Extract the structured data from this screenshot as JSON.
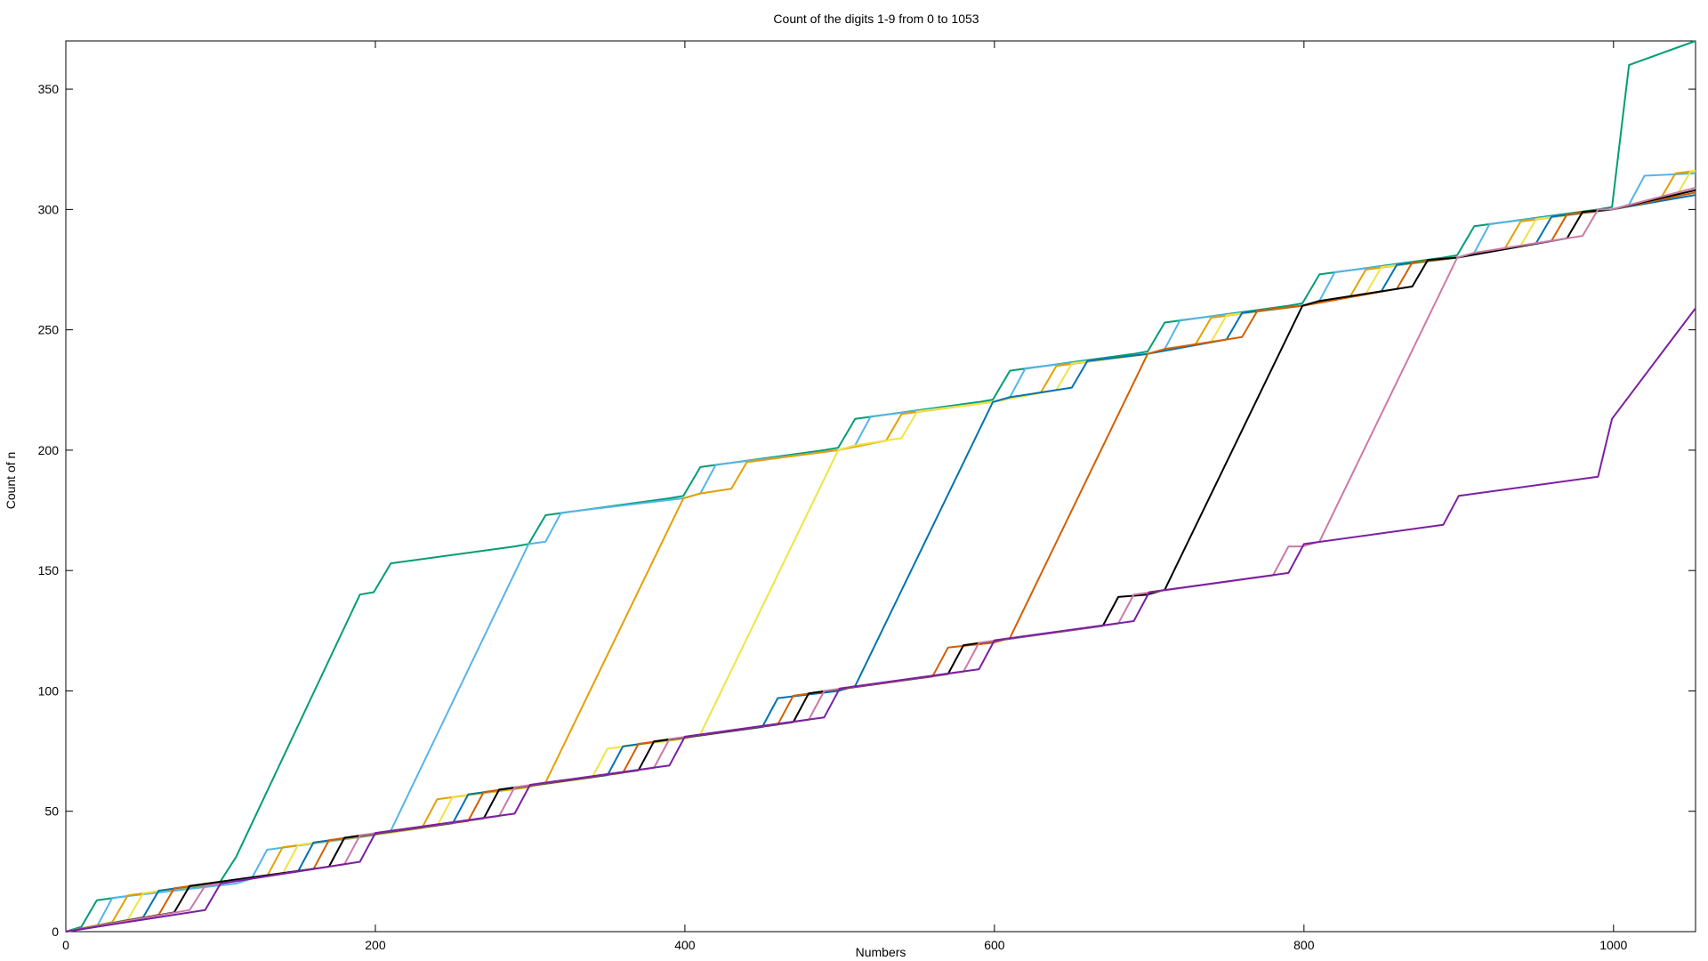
{
  "chart_data": {
    "type": "line",
    "title": "Count of the digits 1-9 from 0 to 1053",
    "xlabel": "Numbers",
    "ylabel": "Count of n",
    "xlim": [
      0,
      1053
    ],
    "ylim": [
      0,
      370
    ],
    "x_ticks": [
      0,
      200,
      400,
      600,
      800,
      1000
    ],
    "y_ticks": [
      0,
      50,
      100,
      150,
      200,
      250,
      300,
      350
    ],
    "grid": false,
    "legend": "none",
    "series": [
      {
        "color": "#009e73",
        "x": [
          0,
          10,
          20,
          99,
          110,
          190,
          199,
          210,
          290,
          299,
          310,
          390,
          399,
          410,
          490,
          499,
          510,
          590,
          599,
          610,
          690,
          699,
          710,
          790,
          799,
          810,
          890,
          899,
          910,
          990,
          999,
          1010,
          1053
        ],
        "y": [
          0,
          2,
          13,
          20,
          31,
          140,
          141,
          153,
          160,
          161,
          173,
          180,
          181,
          193,
          200,
          201,
          213,
          220,
          221,
          233,
          240,
          241,
          253,
          260,
          261,
          273,
          280,
          281,
          293,
          300,
          301,
          360,
          370
        ]
      },
      {
        "color": "#56b4e9",
        "x": [
          0,
          20,
          30,
          110,
          120,
          130,
          199,
          210,
          299,
          310,
          320,
          399,
          410,
          420,
          499,
          510,
          520,
          599,
          610,
          620,
          699,
          710,
          720,
          799,
          810,
          820,
          899,
          910,
          920,
          999,
          1010,
          1020,
          1053
        ],
        "y": [
          0,
          2,
          14,
          20,
          22,
          34,
          40,
          42,
          161,
          162,
          174,
          180,
          182,
          194,
          200,
          202,
          214,
          220,
          222,
          234,
          240,
          242,
          254,
          260,
          262,
          274,
          280,
          282,
          294,
          300,
          302,
          314,
          315
        ]
      },
      {
        "color": "#e69f00",
        "x": [
          0,
          30,
          40,
          130,
          140,
          230,
          240,
          299,
          310,
          399,
          410,
          430,
          440,
          499,
          530,
          540,
          599,
          630,
          640,
          699,
          730,
          740,
          799,
          830,
          840,
          899,
          930,
          940,
          999,
          1030,
          1040,
          1053
        ],
        "y": [
          0,
          4,
          15,
          23,
          35,
          43,
          55,
          60,
          62,
          180,
          182,
          184,
          195,
          200,
          204,
          215,
          220,
          224,
          235,
          240,
          244,
          255,
          260,
          264,
          275,
          280,
          284,
          295,
          300,
          304,
          315,
          316
        ]
      },
      {
        "color": "#f0e442",
        "x": [
          0,
          40,
          50,
          140,
          150,
          240,
          250,
          340,
          350,
          399,
          410,
          499,
          510,
          540,
          550,
          599,
          640,
          650,
          699,
          740,
          750,
          799,
          840,
          850,
          899,
          940,
          950,
          999,
          1040,
          1050,
          1053
        ],
        "y": [
          0,
          5,
          16,
          24,
          36,
          44,
          56,
          64,
          76,
          80,
          82,
          200,
          202,
          205,
          216,
          220,
          225,
          236,
          240,
          245,
          256,
          260,
          265,
          276,
          280,
          285,
          296,
          300,
          305,
          316,
          316
        ]
      },
      {
        "color": "#0072b2",
        "x": [
          0,
          50,
          60,
          150,
          160,
          250,
          260,
          350,
          360,
          450,
          460,
          499,
          510,
          599,
          610,
          650,
          660,
          699,
          750,
          760,
          799,
          850,
          860,
          899,
          950,
          960,
          999,
          1053
        ],
        "y": [
          0,
          6,
          17,
          25,
          37,
          45,
          57,
          65,
          77,
          85,
          97,
          100,
          102,
          220,
          222,
          226,
          237,
          240,
          246,
          257,
          260,
          266,
          277,
          280,
          286,
          297,
          300,
          306
        ]
      },
      {
        "color": "#d55e00",
        "x": [
          0,
          60,
          70,
          160,
          170,
          260,
          270,
          360,
          370,
          460,
          470,
          560,
          570,
          599,
          610,
          699,
          710,
          760,
          770,
          799,
          860,
          870,
          899,
          960,
          970,
          999,
          1053
        ],
        "y": [
          0,
          7,
          18,
          26,
          38,
          46,
          58,
          66,
          78,
          86,
          98,
          106,
          118,
          120,
          122,
          240,
          242,
          247,
          258,
          260,
          267,
          278,
          280,
          287,
          298,
          300,
          307
        ]
      },
      {
        "color": "#000000",
        "x": [
          0,
          70,
          80,
          170,
          180,
          270,
          280,
          370,
          380,
          470,
          480,
          570,
          580,
          670,
          680,
          699,
          710,
          799,
          810,
          870,
          880,
          899,
          970,
          980,
          999,
          1053
        ],
        "y": [
          0,
          8,
          19,
          27,
          39,
          47,
          59,
          67,
          79,
          87,
          99,
          107,
          119,
          127,
          139,
          140,
          142,
          260,
          262,
          268,
          279,
          280,
          288,
          299,
          300,
          308
        ]
      },
      {
        "color": "#cc79a7",
        "x": [
          0,
          80,
          90,
          180,
          190,
          280,
          290,
          380,
          390,
          480,
          490,
          580,
          590,
          680,
          690,
          780,
          790,
          799,
          810,
          899,
          910,
          980,
          990,
          999,
          1053
        ],
        "y": [
          0,
          9,
          19,
          28,
          40,
          48,
          60,
          68,
          80,
          88,
          100,
          108,
          120,
          128,
          140,
          148,
          160,
          160,
          162,
          280,
          282,
          289,
          300,
          300,
          309
        ]
      },
      {
        "color": "#7b1fa2",
        "x": [
          0,
          90,
          100,
          190,
          200,
          290,
          300,
          390,
          400,
          490,
          500,
          590,
          600,
          690,
          700,
          790,
          800,
          890,
          900,
          990,
          999,
          1053
        ],
        "y": [
          0,
          9,
          20,
          29,
          41,
          49,
          61,
          69,
          81,
          89,
          101,
          109,
          121,
          129,
          141,
          149,
          161,
          169,
          181,
          189,
          213,
          259
        ]
      }
    ]
  }
}
